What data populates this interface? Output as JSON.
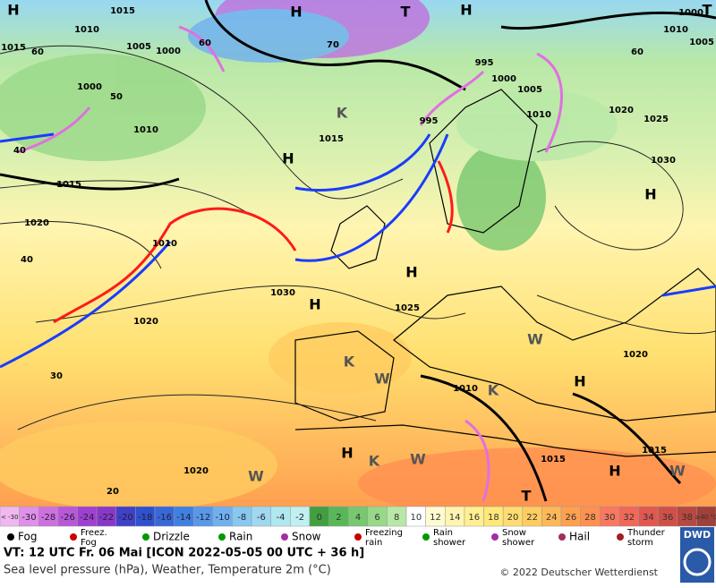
{
  "map": {
    "labels": [
      "H",
      "1015",
      "1010",
      "1005",
      "1000",
      "60",
      "H",
      "T",
      "H",
      "70",
      "995",
      "1000",
      "1005",
      "1010",
      "1020",
      "1025",
      "1000",
      "1005",
      "T",
      "1010",
      "60",
      "1015",
      "60",
      "1000",
      "50",
      "1010",
      "995",
      "1015",
      "K",
      "40",
      "H",
      "1015",
      "1030",
      "H",
      "1020",
      "40",
      "1010",
      "1030",
      "H",
      "H",
      "1025",
      "1020",
      "30",
      "1020",
      "W",
      "K",
      "W",
      "1010",
      "H",
      "K",
      "1015",
      "1015",
      "H",
      "K",
      "W",
      "H",
      "W",
      "1020",
      "W",
      "20",
      "T"
    ]
  },
  "colorbar": {
    "cells": [
      {
        "label": "< -30",
        "color": "#f0b8f0"
      },
      {
        "label": "-30",
        "color": "#e090e8"
      },
      {
        "label": "-28",
        "color": "#d070e0"
      },
      {
        "label": "-26",
        "color": "#b858d8"
      },
      {
        "label": "-24",
        "color": "#a040d0"
      },
      {
        "label": "-22",
        "color": "#8838c8"
      },
      {
        "label": "-20",
        "color": "#4040c8"
      },
      {
        "label": "-18",
        "color": "#3050d0"
      },
      {
        "label": "-16",
        "color": "#3868d8"
      },
      {
        "label": "-14",
        "color": "#4080e0"
      },
      {
        "label": "-12",
        "color": "#5898e8"
      },
      {
        "label": "-10",
        "color": "#70b0f0"
      },
      {
        "label": "-8",
        "color": "#88c8f0"
      },
      {
        "label": "-6",
        "color": "#a0d8f0"
      },
      {
        "label": "-4",
        "color": "#b0e8f0"
      },
      {
        "label": "-2",
        "color": "#c0f0f0"
      },
      {
        "label": "0",
        "color": "#40a040"
      },
      {
        "label": "2",
        "color": "#58b858"
      },
      {
        "label": "4",
        "color": "#78c870"
      },
      {
        "label": "6",
        "color": "#98d888"
      },
      {
        "label": "8",
        "color": "#b8e8a8"
      },
      {
        "label": "10",
        "color": "#ffffff"
      },
      {
        "label": "12",
        "color": "#fffbd0"
      },
      {
        "label": "14",
        "color": "#fff5b0"
      },
      {
        "label": "16",
        "color": "#ffef90"
      },
      {
        "label": "18",
        "color": "#ffe878"
      },
      {
        "label": "20",
        "color": "#ffdc70"
      },
      {
        "label": "22",
        "color": "#ffcc60"
      },
      {
        "label": "24",
        "color": "#ffb858"
      },
      {
        "label": "26",
        "color": "#ffa050"
      },
      {
        "label": "28",
        "color": "#ff9050"
      },
      {
        "label": "30",
        "color": "#f87860"
      },
      {
        "label": "32",
        "color": "#f06858"
      },
      {
        "label": "34",
        "color": "#e05850"
      },
      {
        "label": "36",
        "color": "#d05048"
      },
      {
        "label": "38",
        "color": "#b84840"
      },
      {
        "label": "≥40 °C",
        "color": "#a04038"
      }
    ]
  },
  "symbols": [
    "Fog",
    "Freez. Fog",
    "Drizzle",
    "Rain",
    "Snow",
    "Freezing rain",
    "Rain shower",
    "Snow shower",
    "Hail",
    "Thunder storm"
  ],
  "footer": {
    "line1": "VT: 12 UTC Fr.  06 Mai [ICON 2022-05-05  00 UTC + 36 h]",
    "line2": "Sea level pressure (hPa), Weather, Temperature 2m (°C)",
    "copyright": "© 2022 Deutscher Wetterdienst",
    "logo": "DWD"
  }
}
